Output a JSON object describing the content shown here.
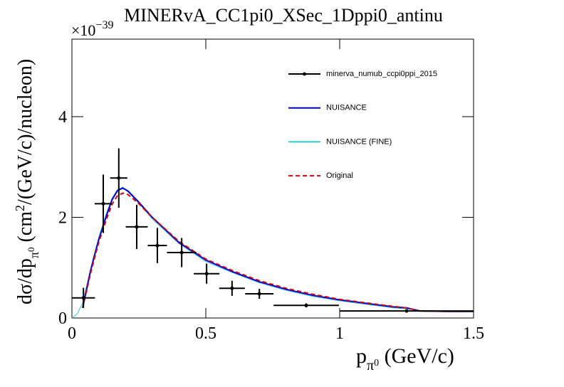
{
  "chart_data": {
    "type": "line",
    "title": "MINERvA_CC1pi0_XSec_1Dppi0_antinu",
    "xlabel": {
      "a": "p",
      "b": "π",
      "c": "0",
      "d": " (GeV/c)"
    },
    "ylabel": {
      "a": "dσ/dp",
      "b": "π",
      "c": "0",
      "d": " (cm",
      "e": "2",
      "f": "/(GeV/c)/nucleon)"
    },
    "yexponent": {
      "a": "×10",
      "b": "−39"
    },
    "xlim": [
      0,
      1.5
    ],
    "ylim": [
      0,
      5.54
    ],
    "xticks": [
      0,
      0.5,
      1,
      1.5
    ],
    "yticks": [
      0,
      2,
      4
    ],
    "legend": "top-right",
    "series": [
      {
        "name": "minerva_numub_ccpi0ppi_2015",
        "color": "#000000",
        "style": "points",
        "x": [
          0.043,
          0.117,
          0.175,
          0.242,
          0.319,
          0.41,
          0.503,
          0.598,
          0.7,
          0.875,
          1.25
        ],
        "xerr": [
          0.043,
          0.032,
          0.032,
          0.041,
          0.036,
          0.055,
          0.048,
          0.048,
          0.053,
          0.122,
          0.25
        ],
        "values": [
          0.4,
          2.27,
          2.78,
          1.81,
          1.44,
          1.3,
          0.88,
          0.59,
          0.48,
          0.25,
          0.14
        ],
        "yerr": [
          0.2,
          0.58,
          0.59,
          0.44,
          0.35,
          0.29,
          0.2,
          0.15,
          0.1,
          0.04,
          0.03
        ]
      },
      {
        "name": "NUISANCE",
        "color": "#0000dd",
        "style": "solid",
        "x": [
          0.04,
          0.05,
          0.07,
          0.1,
          0.13,
          0.15,
          0.17,
          0.19,
          0.21,
          0.25,
          0.3,
          0.35,
          0.4,
          0.5,
          0.6,
          0.7,
          0.8,
          0.9,
          1.0,
          1.1,
          1.2,
          1.25,
          1.3,
          1.4,
          1.5
        ],
        "values": [
          0.2,
          0.45,
          0.95,
          1.55,
          2.05,
          2.35,
          2.53,
          2.58,
          2.52,
          2.3,
          2.0,
          1.75,
          1.5,
          1.15,
          0.92,
          0.72,
          0.57,
          0.45,
          0.36,
          0.29,
          0.22,
          0.2,
          0.14,
          0.13,
          0.13
        ]
      },
      {
        "name": "NUISANCE (FINE)",
        "color": "#33cccc",
        "style": "solid",
        "x": [
          0.0,
          0.02,
          0.04,
          0.06,
          0.08,
          0.1,
          0.13,
          0.15,
          0.17,
          0.19,
          0.21,
          0.25,
          0.3,
          0.35,
          0.4,
          0.5,
          0.6,
          0.7,
          0.8,
          0.9,
          1.0,
          1.1,
          1.2,
          1.25,
          1.3,
          1.4,
          1.5
        ],
        "values": [
          0.0,
          0.08,
          0.3,
          0.75,
          1.2,
          1.6,
          2.1,
          2.38,
          2.55,
          2.6,
          2.5,
          2.28,
          1.97,
          1.72,
          1.48,
          1.12,
          0.9,
          0.7,
          0.55,
          0.43,
          0.34,
          0.27,
          0.2,
          0.18,
          0.15,
          0.12,
          0.12
        ]
      },
      {
        "name": "Original",
        "color": "#dd0000",
        "style": "dashed",
        "x": [
          0.04,
          0.05,
          0.07,
          0.1,
          0.13,
          0.15,
          0.17,
          0.19,
          0.21,
          0.25,
          0.3,
          0.35,
          0.4,
          0.5,
          0.6,
          0.7,
          0.8,
          0.9,
          1.0,
          1.1,
          1.2,
          1.25,
          1.3,
          1.4,
          1.5
        ],
        "values": [
          0.2,
          0.42,
          0.9,
          1.5,
          1.98,
          2.26,
          2.43,
          2.48,
          2.45,
          2.27,
          2.0,
          1.76,
          1.52,
          1.17,
          0.94,
          0.74,
          0.59,
          0.47,
          0.37,
          0.3,
          0.23,
          0.2,
          0.14,
          0.13,
          0.13
        ]
      }
    ]
  }
}
